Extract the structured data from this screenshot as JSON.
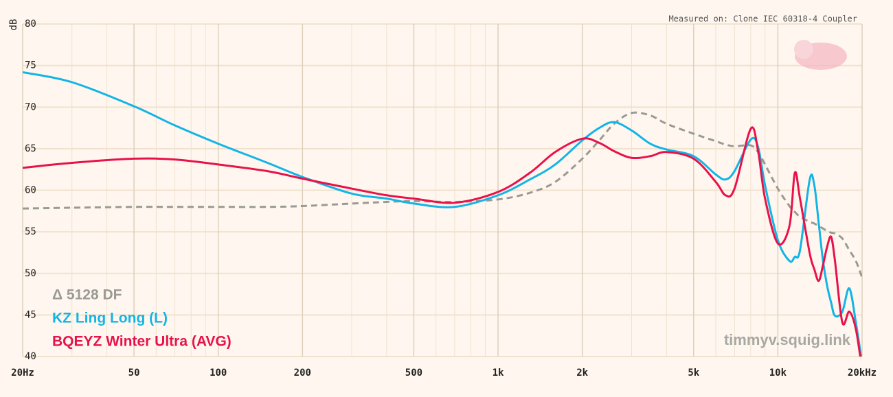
{
  "chart_data": {
    "type": "line",
    "subtitle": "Measured on: Clone IEC 60318-4 Coupler",
    "watermark": "timmyv.squig.link",
    "y_label": "dB",
    "log_x": true,
    "grid": true,
    "legend": "bottom-left",
    "x": [
      20,
      30,
      50,
      70,
      100,
      150,
      200,
      300,
      400,
      500,
      700,
      1000,
      1300,
      1600,
      2000,
      2300,
      2600,
      3000,
      3500,
      4000,
      5000,
      6000,
      6500,
      7000,
      8000,
      8500,
      9000,
      10000,
      11000,
      11500,
      12000,
      13000,
      13500,
      14000,
      14500,
      15000,
      15500,
      16000,
      17000,
      18000,
      19000,
      20000
    ],
    "series": [
      {
        "name": "Δ 5128 DF",
        "color": "#9a9a94",
        "style": "dashed",
        "values": [
          57.8,
          57.9,
          58.0,
          58.0,
          58.0,
          58.0,
          58.1,
          58.4,
          58.6,
          58.7,
          58.6,
          58.9,
          59.7,
          61.0,
          63.8,
          66.0,
          68.0,
          69.3,
          69.0,
          68.0,
          66.8,
          65.9,
          65.5,
          65.3,
          65.4,
          64.6,
          63.1,
          60.2,
          58.1,
          57.4,
          56.8,
          56.2,
          56.0,
          55.7,
          55.4,
          55.1,
          54.9,
          54.8,
          54.2,
          52.8,
          51.5,
          49.5
        ]
      },
      {
        "name": "KZ Ling Long (L)",
        "color": "#13b4e6",
        "style": "solid",
        "values": [
          74.2,
          73.0,
          70.1,
          67.8,
          65.6,
          63.3,
          61.6,
          59.6,
          59.0,
          58.4,
          58.0,
          59.4,
          61.3,
          63.1,
          66.0,
          67.5,
          68.2,
          67.2,
          65.6,
          64.9,
          64.1,
          61.9,
          61.3,
          62.3,
          66.1,
          65.2,
          60.6,
          54.0,
          51.5,
          52.0,
          52.8,
          61.3,
          60.6,
          56.0,
          51.5,
          48.5,
          46.5,
          44.9,
          45.4,
          48.2,
          44.1,
          39.2
        ]
      },
      {
        "name": "BQEYZ Winter Ultra (AVG)",
        "color": "#e8124a",
        "style": "solid",
        "values": [
          62.7,
          63.3,
          63.8,
          63.7,
          63.1,
          62.3,
          61.4,
          60.2,
          59.4,
          59.0,
          58.5,
          59.8,
          62.1,
          64.6,
          66.2,
          65.7,
          64.7,
          63.9,
          64.1,
          64.6,
          63.8,
          61.0,
          59.4,
          60.2,
          67.4,
          64.7,
          59.0,
          53.6,
          55.7,
          62.1,
          59.0,
          52.4,
          50.5,
          49.1,
          51.0,
          53.2,
          54.4,
          51.5,
          44.1,
          45.4,
          43.3,
          38.4
        ]
      }
    ],
    "xlim": [
      20,
      20000
    ],
    "xticks": [
      {
        "value": 20,
        "label": "20Hz"
      },
      50,
      100,
      200,
      500,
      {
        "value": 1000,
        "label": "1k"
      },
      {
        "value": 2000,
        "label": "2k"
      },
      {
        "value": 5000,
        "label": "5k"
      },
      {
        "value": 10000,
        "label": "10k"
      },
      {
        "value": 20000,
        "label": "20kHz"
      }
    ],
    "x_minor_ticks": [
      30,
      40,
      60,
      70,
      80,
      90,
      300,
      400,
      600,
      700,
      800,
      900,
      3000,
      4000,
      6000,
      7000,
      8000,
      9000
    ],
    "ylim": [
      40,
      80
    ],
    "yticks": [
      40,
      45,
      50,
      55,
      60,
      65,
      70,
      75,
      80
    ]
  }
}
